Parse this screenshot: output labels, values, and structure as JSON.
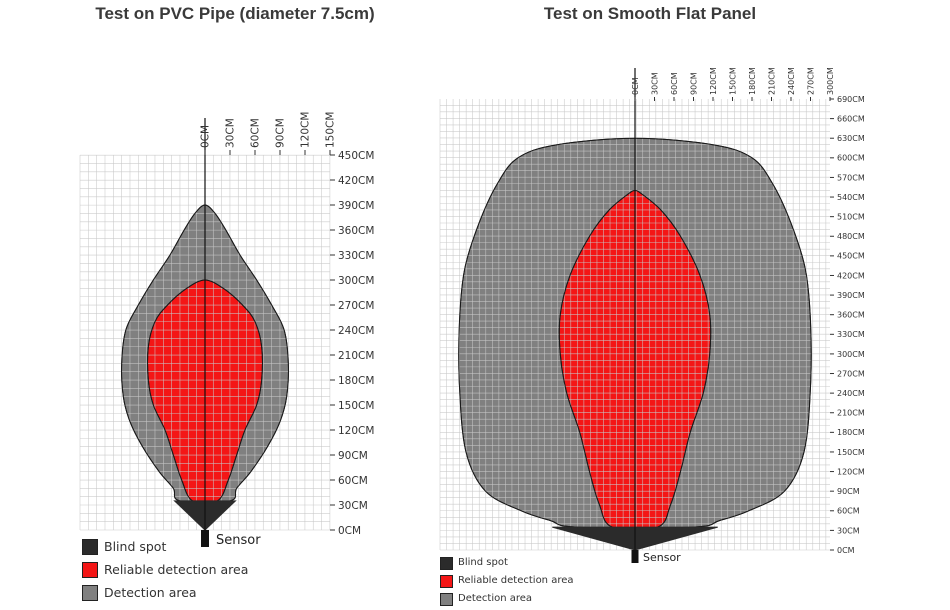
{
  "colors": {
    "blind": "#2b2b2b",
    "reliable": "#f41616",
    "detection": "#808080",
    "grid": "#c8c8c8",
    "outline": "#1a1a1a"
  },
  "chart_data": [
    {
      "type": "area",
      "title": "Test on PVC Pipe (diameter  7.5cm)",
      "sensor_label": "Sensor",
      "x_ticks": [
        "0CM",
        "30CM",
        "60CM",
        "90CM",
        "120CM",
        "150CM"
      ],
      "y_ticks": [
        "0CM",
        "30CM",
        "60CM",
        "90CM",
        "120CM",
        "150CM",
        "180CM",
        "210CM",
        "240CM",
        "270CM",
        "300CM",
        "330CM",
        "360CM",
        "390CM",
        "420CM",
        "450CM"
      ],
      "xlim": [
        -150,
        150
      ],
      "ylim": [
        0,
        450
      ],
      "grid": true,
      "legend": [
        "Blind spot",
        "Reliable detection area",
        "Detection area"
      ],
      "detection_area_max_range_cm": 390,
      "reliable_area_max_range_cm": 300,
      "blind_spot_range_cm": 35,
      "detection_area": [
        {
          "y": 35,
          "hw": 30
        },
        {
          "y": 50,
          "hw": 38
        },
        {
          "y": 70,
          "hw": 55
        },
        {
          "y": 100,
          "hw": 75
        },
        {
          "y": 130,
          "hw": 90
        },
        {
          "y": 160,
          "hw": 98
        },
        {
          "y": 200,
          "hw": 100
        },
        {
          "y": 240,
          "hw": 95
        },
        {
          "y": 270,
          "hw": 80
        },
        {
          "y": 300,
          "hw": 62
        },
        {
          "y": 330,
          "hw": 42
        },
        {
          "y": 360,
          "hw": 25
        },
        {
          "y": 380,
          "hw": 12
        },
        {
          "y": 390,
          "hw": 0
        }
      ],
      "reliable_area": [
        {
          "y": 35,
          "hw": 15
        },
        {
          "y": 60,
          "hw": 28
        },
        {
          "y": 90,
          "hw": 38
        },
        {
          "y": 120,
          "hw": 48
        },
        {
          "y": 150,
          "hw": 62
        },
        {
          "y": 180,
          "hw": 68
        },
        {
          "y": 220,
          "hw": 68
        },
        {
          "y": 250,
          "hw": 60
        },
        {
          "y": 270,
          "hw": 45
        },
        {
          "y": 290,
          "hw": 22
        },
        {
          "y": 300,
          "hw": 0
        }
      ]
    },
    {
      "type": "area",
      "title": "Test on Smooth Flat Panel",
      "sensor_label": "Sensor",
      "x_ticks": [
        "0CM",
        "30CM",
        "60CM",
        "90CM",
        "120CM",
        "150CM",
        "180CM",
        "210CM",
        "240CM",
        "270CM",
        "300CM"
      ],
      "y_ticks": [
        "0CM",
        "30CM",
        "60CM",
        "90CM",
        "120CM",
        "150CM",
        "180CM",
        "210CM",
        "240CM",
        "270CM",
        "300CM",
        "330CM",
        "360CM",
        "390CM",
        "420CM",
        "450CM",
        "480CM",
        "510CM",
        "540CM",
        "570CM",
        "600CM",
        "630CM",
        "660CM",
        "690CM"
      ],
      "xlim": [
        -300,
        300
      ],
      "ylim": [
        0,
        690
      ],
      "grid": true,
      "legend": [
        "Blind spot",
        "Reliable detection area",
        "Detection area"
      ],
      "detection_area_max_range_cm": 630,
      "reliable_area_max_range_cm": 550,
      "blind_spot_range_cm": 35,
      "detection_area": [
        {
          "y": 35,
          "hw": 90
        },
        {
          "y": 45,
          "hw": 130
        },
        {
          "y": 60,
          "hw": 175
        },
        {
          "y": 90,
          "hw": 230
        },
        {
          "y": 150,
          "hw": 260
        },
        {
          "y": 250,
          "hw": 270
        },
        {
          "y": 350,
          "hw": 270
        },
        {
          "y": 430,
          "hw": 262
        },
        {
          "y": 500,
          "hw": 240
        },
        {
          "y": 560,
          "hw": 212
        },
        {
          "y": 600,
          "hw": 180
        },
        {
          "y": 620,
          "hw": 120
        },
        {
          "y": 630,
          "hw": 0
        }
      ],
      "reliable_area": [
        {
          "y": 35,
          "hw": 35
        },
        {
          "y": 70,
          "hw": 55
        },
        {
          "y": 120,
          "hw": 70
        },
        {
          "y": 180,
          "hw": 85
        },
        {
          "y": 240,
          "hw": 105
        },
        {
          "y": 300,
          "hw": 115
        },
        {
          "y": 360,
          "hw": 115
        },
        {
          "y": 420,
          "hw": 100
        },
        {
          "y": 480,
          "hw": 70
        },
        {
          "y": 520,
          "hw": 40
        },
        {
          "y": 545,
          "hw": 10
        },
        {
          "y": 550,
          "hw": 0
        }
      ]
    }
  ]
}
